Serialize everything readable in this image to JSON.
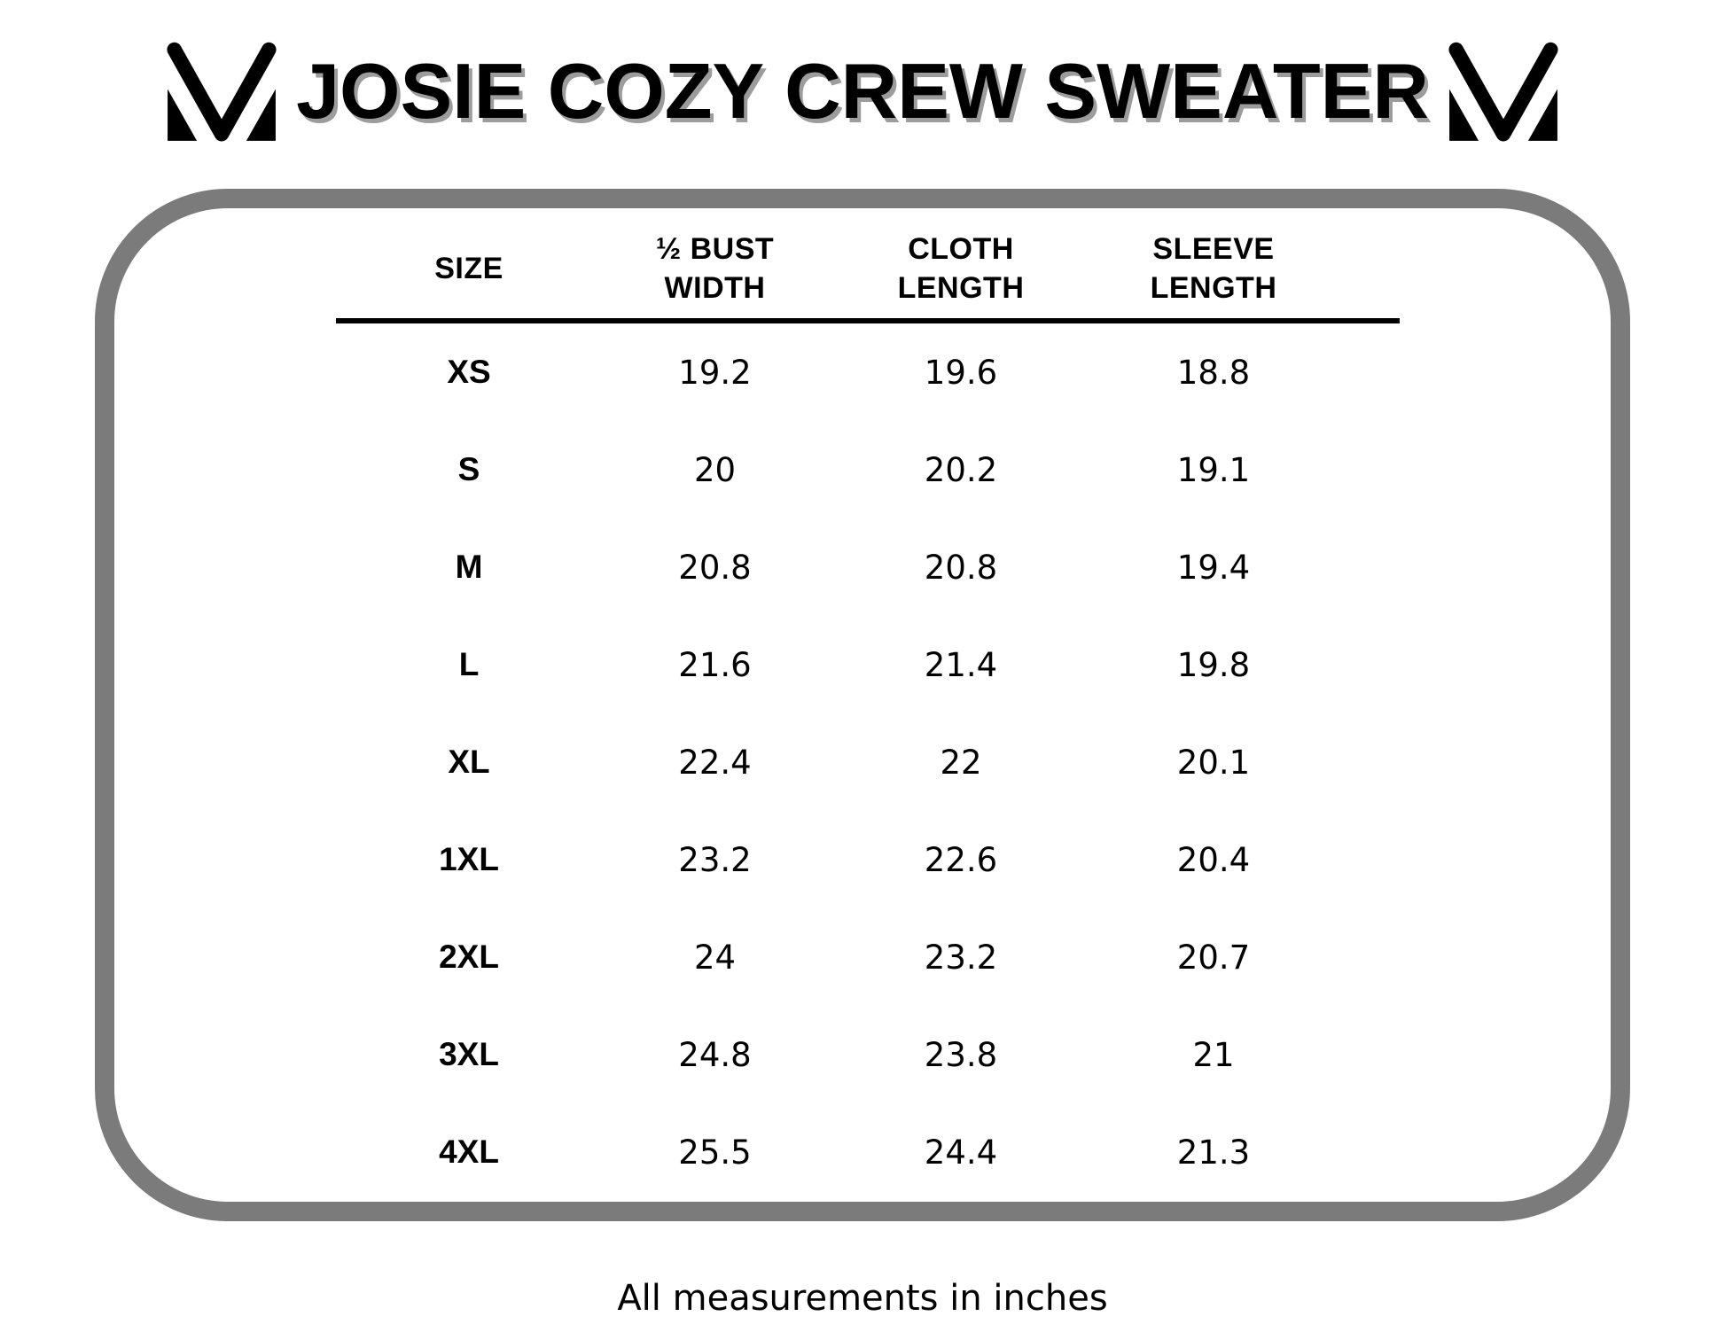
{
  "title": "JOSIE COZY CREW SWEATER",
  "logo": {
    "name": "mv-monogram",
    "color": "#000000"
  },
  "footnote": "All measurements in inches",
  "colors": {
    "background": "#ffffff",
    "border": "#7b7b7b",
    "text": "#000000",
    "title_shadow": "#9c9c9c"
  },
  "table": {
    "column_headers": [
      [
        "SIZE"
      ],
      [
        "½ BUST",
        "WIDTH"
      ],
      [
        "CLOTH",
        "LENGTH"
      ],
      [
        "SLEEVE",
        "LENGTH"
      ]
    ],
    "rows": [
      [
        "XS",
        "19.2",
        "19.6",
        "18.8"
      ],
      [
        "S",
        "20",
        "20.2",
        "19.1"
      ],
      [
        "M",
        "20.8",
        "20.8",
        "19.4"
      ],
      [
        "L",
        "21.6",
        "21.4",
        "19.8"
      ],
      [
        "XL",
        "22.4",
        "22",
        "20.1"
      ],
      [
        "1XL",
        "23.2",
        "22.6",
        "20.4"
      ],
      [
        "2XL",
        "24",
        "23.2",
        "20.7"
      ],
      [
        "3XL",
        "24.8",
        "23.8",
        "21"
      ],
      [
        "4XL",
        "25.5",
        "24.4",
        "21.3"
      ]
    ]
  },
  "chart_data": {
    "type": "table",
    "title": "JOSIE COZY CREW SWEATER",
    "columns": [
      "SIZE",
      "½ BUST WIDTH",
      "CLOTH LENGTH",
      "SLEEVE LENGTH"
    ],
    "rows": [
      [
        "XS",
        19.2,
        19.6,
        18.8
      ],
      [
        "S",
        20,
        20.2,
        19.1
      ],
      [
        "M",
        20.8,
        20.8,
        19.4
      ],
      [
        "L",
        21.6,
        21.4,
        19.8
      ],
      [
        "XL",
        22.4,
        22,
        20.1
      ],
      [
        "1XL",
        23.2,
        22.6,
        20.4
      ],
      [
        "2XL",
        24,
        23.2,
        20.7
      ],
      [
        "3XL",
        24.8,
        23.8,
        21
      ],
      [
        "4XL",
        25.5,
        24.4,
        21.3
      ]
    ],
    "units": "inches",
    "note": "All measurements in inches"
  }
}
